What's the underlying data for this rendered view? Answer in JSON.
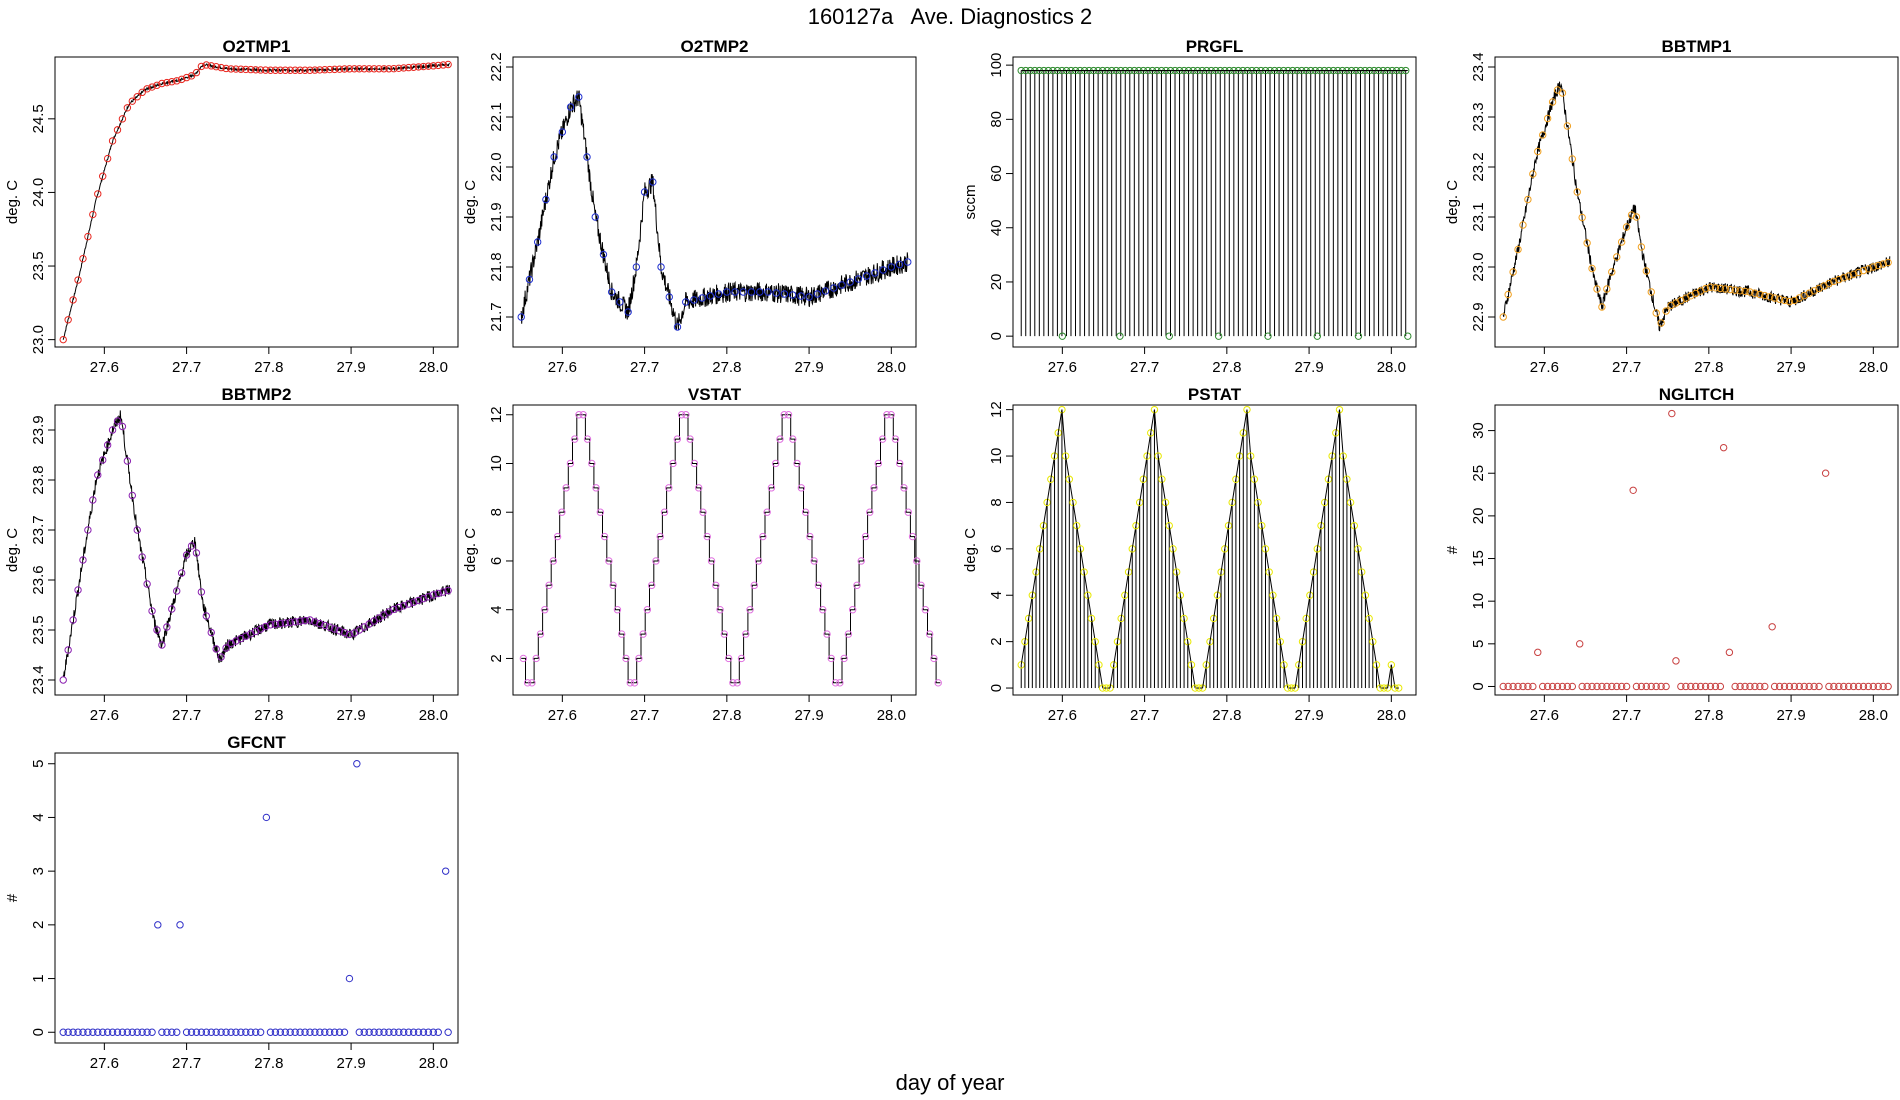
{
  "figure": {
    "title": "160127a   Ave. Diagnostics 2",
    "xlabel": "day of year"
  },
  "chart_data": [
    {
      "id": "o2tmp1",
      "type": "line",
      "title": "O2TMP1",
      "ylabel": "deg. C",
      "xlim": [
        27.54,
        28.03
      ],
      "ylim": [
        22.95,
        24.92
      ],
      "xticks": [
        27.6,
        27.7,
        27.8,
        27.9,
        28.0
      ],
      "xtick_labels": [
        "27.6",
        "27.7",
        "27.8",
        "27.9",
        "28.0"
      ],
      "yticks": [
        23.0,
        23.5,
        24.0,
        24.5
      ],
      "ytick_labels": [
        "23.0",
        "23.5",
        "24.0",
        "24.5"
      ],
      "line_color": "#000000",
      "marker_color": "#e8261f",
      "marker_step": 0.006,
      "x": [
        27.55,
        27.57,
        27.59,
        27.61,
        27.63,
        27.65,
        27.67,
        27.69,
        27.71,
        27.72,
        27.75,
        27.8,
        27.85,
        27.9,
        27.95,
        28.0,
        28.02
      ],
      "y": [
        23.0,
        23.45,
        23.95,
        24.35,
        24.6,
        24.7,
        24.74,
        24.76,
        24.8,
        24.87,
        24.84,
        24.83,
        24.83,
        24.84,
        24.84,
        24.86,
        24.87
      ],
      "noise": 0.008
    },
    {
      "id": "o2tmp2",
      "type": "line",
      "title": "O2TMP2",
      "ylabel": "deg. C",
      "xlim": [
        27.54,
        28.03
      ],
      "ylim": [
        21.64,
        22.22
      ],
      "xticks": [
        27.6,
        27.7,
        27.8,
        27.9,
        28.0
      ],
      "xtick_labels": [
        "27.6",
        "27.7",
        "27.8",
        "27.9",
        "28.0"
      ],
      "yticks": [
        21.7,
        21.8,
        21.9,
        22.0,
        22.1,
        22.2
      ],
      "ytick_labels": [
        "21.7",
        "21.8",
        "21.9",
        "22.0",
        "22.1",
        "22.2"
      ],
      "line_color": "#000000",
      "marker_color": "#1f2fd0",
      "marker_step": 0.01,
      "x": [
        27.55,
        27.57,
        27.59,
        27.61,
        27.62,
        27.64,
        27.66,
        27.68,
        27.69,
        27.7,
        27.71,
        27.72,
        27.74,
        27.75,
        27.8,
        27.85,
        27.9,
        27.95,
        28.0,
        28.02
      ],
      "y": [
        21.7,
        21.85,
        22.02,
        22.12,
        22.14,
        21.9,
        21.75,
        21.71,
        21.8,
        21.95,
        21.97,
        21.8,
        21.68,
        21.73,
        21.75,
        21.75,
        21.74,
        21.77,
        21.8,
        21.81
      ],
      "noise": 0.02
    },
    {
      "id": "prgfl",
      "type": "line",
      "title": "PRGFL",
      "ylabel": "sccm",
      "variant": "spikes",
      "xlim": [
        27.54,
        28.03
      ],
      "ylim": [
        -4,
        103
      ],
      "xticks": [
        27.6,
        27.7,
        27.8,
        27.9,
        28.0
      ],
      "xtick_labels": [
        "27.6",
        "27.7",
        "27.8",
        "27.9",
        "28.0"
      ],
      "yticks": [
        0,
        20,
        40,
        60,
        80,
        100
      ],
      "ytick_labels": [
        "0",
        "20",
        "40",
        "60",
        "80",
        "100"
      ],
      "line_color": "#000000",
      "marker_color": "#2e8b2e",
      "x_start": 27.55,
      "x_end": 28.02,
      "spike_step": 0.0055,
      "high_value": 98,
      "low_value": 0,
      "low_points_x": [
        27.6,
        27.67,
        27.73,
        27.79,
        27.85,
        27.91,
        27.96,
        28.02
      ]
    },
    {
      "id": "bbtmp1",
      "type": "line",
      "title": "BBTMP1",
      "ylabel": "deg. C",
      "xlim": [
        27.54,
        28.03
      ],
      "ylim": [
        22.84,
        23.42
      ],
      "xticks": [
        27.6,
        27.7,
        27.8,
        27.9,
        28.0
      ],
      "xtick_labels": [
        "27.6",
        "27.7",
        "27.8",
        "27.9",
        "28.0"
      ],
      "yticks": [
        22.9,
        23.0,
        23.1,
        23.2,
        23.3,
        23.4
      ],
      "ytick_labels": [
        "22.9",
        "23.0",
        "23.1",
        "23.2",
        "23.3",
        "23.4"
      ],
      "line_color": "#000000",
      "marker_color": "#f0a020",
      "marker_step": 0.006,
      "x": [
        27.55,
        27.57,
        27.59,
        27.61,
        27.62,
        27.64,
        27.66,
        27.67,
        27.68,
        27.7,
        27.71,
        27.72,
        27.74,
        27.75,
        27.8,
        27.85,
        27.9,
        27.95,
        28.0,
        28.02
      ],
      "y": [
        22.9,
        23.05,
        23.22,
        23.33,
        23.37,
        23.15,
        22.98,
        22.92,
        22.98,
        23.08,
        23.12,
        23.02,
        22.88,
        22.92,
        22.96,
        22.95,
        22.93,
        22.97,
        23.0,
        23.01
      ],
      "noise": 0.012
    },
    {
      "id": "bbtmp2",
      "type": "line",
      "title": "BBTMP2",
      "ylabel": "deg. C",
      "xlim": [
        27.54,
        28.03
      ],
      "ylim": [
        23.37,
        23.95
      ],
      "xticks": [
        27.6,
        27.7,
        27.8,
        27.9,
        28.0
      ],
      "xtick_labels": [
        "27.6",
        "27.7",
        "27.8",
        "27.9",
        "28.0"
      ],
      "yticks": [
        23.4,
        23.5,
        23.6,
        23.7,
        23.8,
        23.9
      ],
      "ytick_labels": [
        "23.4",
        "23.5",
        "23.6",
        "23.7",
        "23.8",
        "23.9"
      ],
      "line_color": "#000000",
      "marker_color": "#8a1fb0",
      "marker_step": 0.006,
      "x": [
        27.55,
        27.57,
        27.59,
        27.61,
        27.62,
        27.64,
        27.66,
        27.67,
        27.68,
        27.7,
        27.71,
        27.72,
        27.74,
        27.75,
        27.8,
        27.85,
        27.9,
        27.95,
        28.0,
        28.02
      ],
      "y": [
        23.4,
        23.6,
        23.8,
        23.9,
        23.93,
        23.7,
        23.52,
        23.47,
        23.53,
        23.65,
        23.68,
        23.55,
        23.44,
        23.47,
        23.51,
        23.52,
        23.49,
        23.54,
        23.57,
        23.58
      ],
      "noise": 0.012
    },
    {
      "id": "vstat",
      "type": "line",
      "title": "VSTAT",
      "ylabel": "deg. C",
      "variant": "staircase",
      "xlim": [
        27.54,
        28.03
      ],
      "ylim": [
        0.5,
        12.4
      ],
      "xticks": [
        27.6,
        27.7,
        27.8,
        27.9,
        28.0
      ],
      "xtick_labels": [
        "27.6",
        "27.7",
        "27.8",
        "27.9",
        "28.0"
      ],
      "yticks": [
        2,
        4,
        6,
        8,
        10,
        12
      ],
      "ytick_labels": [
        "2",
        "4",
        "6",
        "8",
        "10",
        "12"
      ],
      "line_color": "#000000",
      "marker_color": "#e070e0",
      "x_start": 27.55,
      "step_width": 0.0052,
      "cycle_levels": [
        2,
        1,
        1,
        2,
        3,
        4,
        5,
        6,
        7,
        8,
        9,
        10,
        11,
        12,
        12,
        11,
        10,
        9,
        8,
        7,
        6,
        5,
        4,
        3
      ],
      "cycles": 4
    },
    {
      "id": "pstat",
      "type": "line",
      "title": "PSTAT",
      "ylabel": "deg. C",
      "variant": "sawtooth",
      "xlim": [
        27.54,
        28.03
      ],
      "ylim": [
        -0.3,
        12.2
      ],
      "xticks": [
        27.6,
        27.7,
        27.8,
        27.9,
        28.0
      ],
      "xtick_labels": [
        "27.6",
        "27.7",
        "27.8",
        "27.9",
        "28.0"
      ],
      "yticks": [
        0,
        2,
        4,
        6,
        8,
        10,
        12
      ],
      "ytick_labels": [
        "0",
        "2",
        "4",
        "6",
        "8",
        "10",
        "12"
      ],
      "line_color": "#000000",
      "marker_color": "#e8e800",
      "x_start": 27.55,
      "spike_step": 0.0045,
      "cycle_levels": [
        1,
        2,
        3,
        4,
        5,
        6,
        7,
        8,
        9,
        10,
        11,
        12,
        10,
        9,
        8,
        7,
        6,
        5,
        4,
        3,
        2,
        1,
        0,
        0,
        0
      ],
      "cycles": 4
    },
    {
      "id": "nglitch",
      "type": "scatter",
      "title": "NGLITCH",
      "ylabel": "#",
      "xlim": [
        27.54,
        28.03
      ],
      "ylim": [
        -1,
        33
      ],
      "xticks": [
        27.6,
        27.7,
        27.8,
        27.9,
        28.0
      ],
      "xtick_labels": [
        "27.6",
        "27.7",
        "27.8",
        "27.9",
        "28.0"
      ],
      "yticks": [
        0,
        5,
        10,
        15,
        20,
        25,
        30
      ],
      "ytick_labels": [
        "0",
        "5",
        "10",
        "15",
        "20",
        "25",
        "30"
      ],
      "marker_color": "#c84040",
      "baseline": {
        "x_start": 27.55,
        "x_end": 28.02,
        "step": 0.006,
        "value": 0
      },
      "points": [
        [
          27.592,
          4
        ],
        [
          27.643,
          5
        ],
        [
          27.708,
          23
        ],
        [
          27.755,
          32
        ],
        [
          27.76,
          3
        ],
        [
          27.818,
          28
        ],
        [
          27.825,
          4
        ],
        [
          27.877,
          7
        ],
        [
          27.942,
          25
        ]
      ]
    },
    {
      "id": "gfcnt",
      "type": "scatter",
      "title": "GFCNT",
      "ylabel": "#",
      "xlim": [
        27.54,
        28.03
      ],
      "ylim": [
        -0.2,
        5.2
      ],
      "xticks": [
        27.6,
        27.7,
        27.8,
        27.9,
        28.0
      ],
      "xtick_labels": [
        "27.6",
        "27.7",
        "27.8",
        "27.9",
        "28.0"
      ],
      "yticks": [
        0,
        1,
        2,
        3,
        4,
        5
      ],
      "ytick_labels": [
        "0",
        "1",
        "2",
        "3",
        "4",
        "5"
      ],
      "marker_color": "#3030c8",
      "baseline": {
        "x_start": 27.55,
        "x_end": 28.02,
        "step": 0.006,
        "value": 0
      },
      "points": [
        [
          27.665,
          2
        ],
        [
          27.692,
          2
        ],
        [
          27.797,
          4
        ],
        [
          27.898,
          1
        ],
        [
          27.907,
          5
        ],
        [
          28.015,
          3
        ]
      ]
    }
  ]
}
